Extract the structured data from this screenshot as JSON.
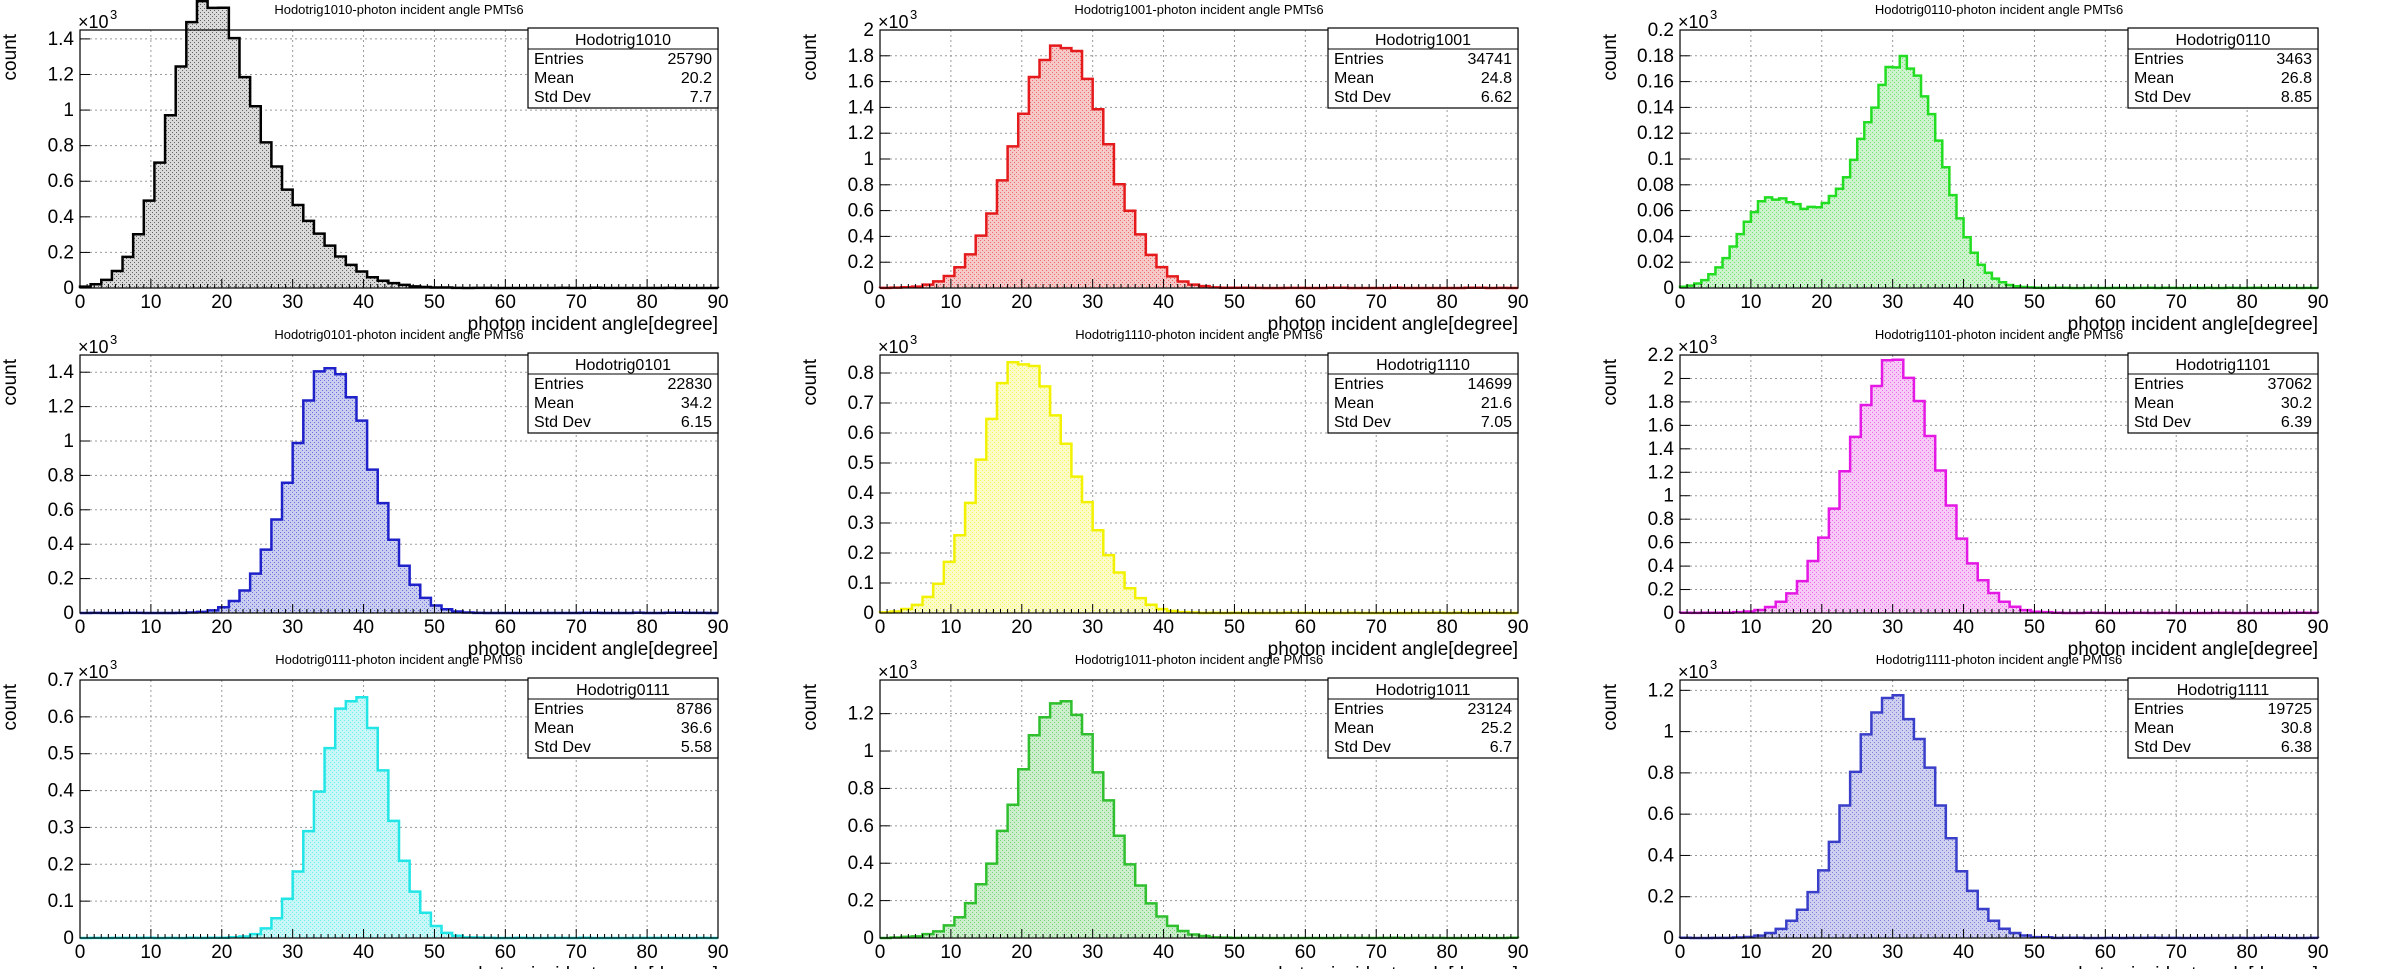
{
  "layout": {
    "rows": 3,
    "cols": 3
  },
  "chart_data": [
    {
      "type": "histogram",
      "title": "Hodotrig1010-photon incident angle PMTs6",
      "xlabel": "photon incident angle[degree]",
      "ylabel": "count",
      "multiplier": "×10",
      "exponent": "3",
      "xlim": [
        0,
        90
      ],
      "ylim": [
        0,
        1.45
      ],
      "yticks": [
        0,
        0.2,
        0.4,
        0.6,
        0.8,
        1,
        1.2,
        1.4
      ],
      "bin_width": 1.5,
      "color": "#000000",
      "fill": "#d9d9d9",
      "stats": {
        "name": "Hodotrig1010",
        "entries": "25790",
        "mean": "20.2",
        "stddev": "7.7"
      },
      "peaks": [
        {
          "mean": 17.5,
          "sigma": 5.2,
          "amp": 1.33
        },
        {
          "mean": 26,
          "sigma": 7.5,
          "amp": 0.5
        }
      ]
    },
    {
      "type": "histogram",
      "title": "Hodotrig1001-photon incident angle PMTs6",
      "xlabel": "photon incident angle[degree]",
      "ylabel": "count",
      "multiplier": "×10",
      "exponent": "3",
      "xlim": [
        0,
        90
      ],
      "ylim": [
        0,
        2.0
      ],
      "yticks": [
        0,
        0.2,
        0.4,
        0.6,
        0.8,
        1,
        1.2,
        1.4,
        1.6,
        1.8,
        2
      ],
      "bin_width": 1.5,
      "color": "#e41a1c",
      "fill": "#f6c9c9",
      "stats": {
        "name": "Hodotrig1001",
        "entries": "34741",
        "mean": "24.8",
        "stddev": "6.62"
      },
      "peaks": [
        {
          "mean": 25.5,
          "sigma": 6.4,
          "amp": 1.9
        }
      ]
    },
    {
      "type": "histogram",
      "title": "Hodotrig0110-photon incident angle PMTs6",
      "xlabel": "photon incident angle[degree]",
      "ylabel": "count",
      "multiplier": "×10",
      "exponent": "3",
      "xlim": [
        0,
        90
      ],
      "ylim": [
        0,
        0.2
      ],
      "yticks": [
        0,
        0.02,
        0.04,
        0.06,
        0.08,
        0.1,
        0.12,
        0.14,
        0.16,
        0.18,
        0.2
      ],
      "bin_width": 1.0,
      "color": "#22dd22",
      "fill": "#cdf2cd",
      "stats": {
        "name": "Hodotrig0110",
        "entries": "3463",
        "mean": "26.8",
        "stddev": "8.85"
      },
      "peaks": [
        {
          "mean": 12,
          "sigma": 4,
          "amp": 0.055
        },
        {
          "mean": 32,
          "sigma": 5,
          "amp": 0.165
        },
        {
          "mean": 22,
          "sigma": 6,
          "amp": 0.05
        }
      ]
    },
    {
      "type": "histogram",
      "title": "Hodotrig0101-photon incident angle PMTs6",
      "xlabel": "photon incident angle[degree]",
      "ylabel": "count",
      "multiplier": "×10",
      "exponent": "3",
      "xlim": [
        0,
        90
      ],
      "ylim": [
        0,
        1.5
      ],
      "yticks": [
        0,
        0.2,
        0.4,
        0.6,
        0.8,
        1,
        1.2,
        1.4
      ],
      "bin_width": 1.5,
      "color": "#1f22c9",
      "fill": "#c9cdf0",
      "stats": {
        "name": "Hodotrig0101",
        "entries": "22830",
        "mean": "34.2",
        "stddev": "6.15"
      },
      "peaks": [
        {
          "mean": 35.5,
          "sigma": 5.6,
          "amp": 1.45
        }
      ]
    },
    {
      "type": "histogram",
      "title": "Hodotrig1110-photon incident angle PMTs6",
      "xlabel": "photon incident angle[degree]",
      "ylabel": "count",
      "multiplier": "×10",
      "exponent": "3",
      "xlim": [
        0,
        90
      ],
      "ylim": [
        0,
        0.86
      ],
      "yticks": [
        0,
        0.1,
        0.2,
        0.3,
        0.4,
        0.5,
        0.6,
        0.7,
        0.8
      ],
      "bin_width": 1.5,
      "color": "#f2f200",
      "fill": "#fbfbc8",
      "stats": {
        "name": "Hodotrig1110",
        "entries": "14699",
        "mean": "21.6",
        "stddev": "7.05"
      },
      "peaks": [
        {
          "mean": 19.5,
          "sigma": 5.5,
          "amp": 0.8
        },
        {
          "mean": 28,
          "sigma": 5,
          "amp": 0.2
        }
      ]
    },
    {
      "type": "histogram",
      "title": "Hodotrig1101-photon incident angle PMTs6",
      "xlabel": "photon incident angle[degree]",
      "ylabel": "count",
      "multiplier": "×10",
      "exponent": "3",
      "xlim": [
        0,
        90
      ],
      "ylim": [
        0,
        2.2
      ],
      "yticks": [
        0,
        0.2,
        0.4,
        0.6,
        0.8,
        1,
        1.2,
        1.4,
        1.6,
        1.8,
        2,
        2.2
      ],
      "bin_width": 1.5,
      "color": "#e41ae4",
      "fill": "#f6c9f6",
      "stats": {
        "name": "Hodotrig1101",
        "entries": "37062",
        "mean": "30.2",
        "stddev": "6.39"
      },
      "peaks": [
        {
          "mean": 30,
          "sigma": 6.3,
          "amp": 2.12
        }
      ]
    },
    {
      "type": "histogram",
      "title": "Hodotrig0111-photon incident angle PMTs6",
      "xlabel": "photon incident angle[degree]",
      "ylabel": "count",
      "multiplier": "×10",
      "exponent": "3",
      "xlim": [
        0,
        90
      ],
      "ylim": [
        0,
        0.7
      ],
      "yticks": [
        0,
        0.1,
        0.2,
        0.3,
        0.4,
        0.5,
        0.6,
        0.7
      ],
      "bin_width": 1.5,
      "color": "#22e6e6",
      "fill": "#c9f6f6",
      "stats": {
        "name": "Hodotrig0111",
        "entries": "8786",
        "mean": "36.6",
        "stddev": "5.58"
      },
      "peaks": [
        {
          "mean": 38.5,
          "sigma": 4.8,
          "amp": 0.66
        }
      ]
    },
    {
      "type": "histogram",
      "title": "Hodotrig1011-photon incident angle PMTs6",
      "xlabel": "photon incident angle[degree]",
      "ylabel": "count",
      "multiplier": "×10",
      "exponent": "3",
      "xlim": [
        0,
        90
      ],
      "ylim": [
        0,
        1.38
      ],
      "yticks": [
        0,
        0.2,
        0.4,
        0.6,
        0.8,
        1,
        1.2
      ],
      "bin_width": 1.5,
      "color": "#2fbf2f",
      "fill": "#cdeecd",
      "stats": {
        "name": "Hodotrig1011",
        "entries": "23124",
        "mean": "25.2",
        "stddev": "6.7"
      },
      "peaks": [
        {
          "mean": 25.5,
          "sigma": 6.5,
          "amp": 1.25
        }
      ]
    },
    {
      "type": "histogram",
      "title": "Hodotrig1111-photon incident angle PMTs6",
      "xlabel": "photon incident angle[degree]",
      "ylabel": "count",
      "multiplier": "×10",
      "exponent": "3",
      "xlim": [
        0,
        90
      ],
      "ylim": [
        0,
        1.25
      ],
      "yticks": [
        0,
        0.2,
        0.4,
        0.6,
        0.8,
        1,
        1.2
      ],
      "bin_width": 1.5,
      "color": "#3a3fc9",
      "fill": "#cfd0f0",
      "stats": {
        "name": "Hodotrig1111",
        "entries": "19725",
        "mean": "30.8",
        "stddev": "6.38"
      },
      "peaks": [
        {
          "mean": 30,
          "sigma": 6.2,
          "amp": 1.15
        }
      ]
    }
  ],
  "stats_labels": {
    "entries": "Entries",
    "mean": "Mean",
    "stddev": "Std Dev"
  }
}
